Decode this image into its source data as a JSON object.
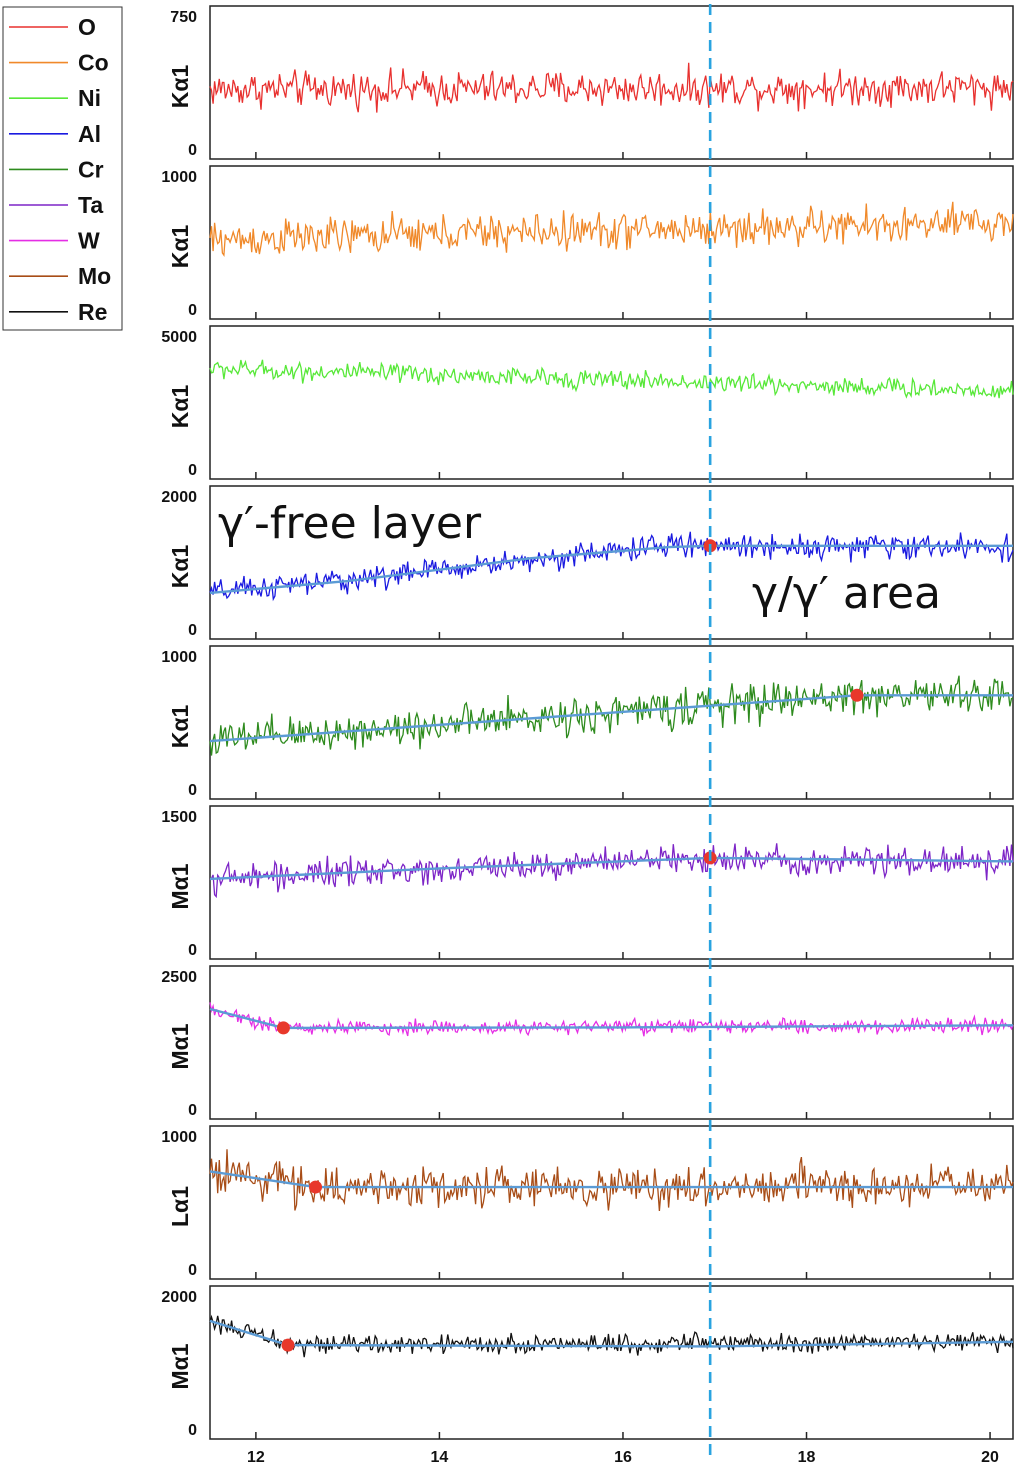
{
  "chart_data": {
    "type": "line",
    "x_tick_labels": [
      "12",
      "14",
      "16",
      "18",
      "20"
    ],
    "xlim": [
      11.5,
      20.25
    ],
    "marker_line_x": 16.95,
    "marker_line_color": "#29a3e0",
    "trend_color": "#5b9bd5",
    "point_color": "#e8382b",
    "annotations": [
      {
        "text": "γ′-free layer",
        "panel": 3
      },
      {
        "text": "γ/γ′ area",
        "panel": 3
      }
    ],
    "legend": [
      {
        "name": "O",
        "color": "#e8312f"
      },
      {
        "name": "Co",
        "color": "#f0892a"
      },
      {
        "name": "Ni",
        "color": "#57e838"
      },
      {
        "name": "Al",
        "color": "#1a1ae0"
      },
      {
        "name": "Cr",
        "color": "#2e8b1e"
      },
      {
        "name": "Ta",
        "color": "#7d25c7"
      },
      {
        "name": "W",
        "color": "#e52ee5"
      },
      {
        "name": "Mo",
        "color": "#a84d17"
      },
      {
        "name": "Re",
        "color": "#111111"
      }
    ],
    "panels": [
      {
        "element": "O",
        "ylabel": "Kα1",
        "ylim": [
          0,
          750
        ],
        "y_tick_labels": [
          "750",
          "0"
        ],
        "color": "#e8312f",
        "baseline": [
          [
            11.5,
            330
          ],
          [
            20.25,
            340
          ]
        ],
        "amplitude": 50,
        "trend": [],
        "points": []
      },
      {
        "element": "Co",
        "ylabel": "Kα1",
        "ylim": [
          0,
          1000
        ],
        "y_tick_labels": [
          "1000",
          "0"
        ],
        "color": "#f0892a",
        "baseline": [
          [
            11.5,
            510
          ],
          [
            14,
            560
          ],
          [
            20.25,
            640
          ]
        ],
        "amplitude": 70,
        "trend": [],
        "points": []
      },
      {
        "element": "Ni",
        "ylabel": "Kα1",
        "ylim": [
          0,
          5000
        ],
        "y_tick_labels": [
          "5000",
          "0"
        ],
        "color": "#57e838",
        "baseline": [
          [
            11.5,
            3750
          ],
          [
            20.25,
            2900
          ]
        ],
        "amplitude": 180,
        "trend": [],
        "points": []
      },
      {
        "element": "Al",
        "ylabel": "Kα1",
        "ylim": [
          0,
          2000
        ],
        "y_tick_labels": [
          "2000",
          "0"
        ],
        "color": "#1a1ae0",
        "baseline": [
          [
            11.5,
            520
          ],
          [
            13,
            720
          ],
          [
            16.5,
            1250
          ],
          [
            16.95,
            1240
          ],
          [
            20.25,
            1220
          ]
        ],
        "amplitude": 90,
        "trend": [
          [
            11.5,
            520
          ],
          [
            13,
            700
          ],
          [
            15,
            1050
          ],
          [
            16.5,
            1220
          ],
          [
            16.95,
            1240
          ],
          [
            20.25,
            1240
          ]
        ],
        "points": [
          [
            16.95,
            1240
          ]
        ]
      },
      {
        "element": "Cr",
        "ylabel": "Kα1",
        "ylim": [
          0,
          1000
        ],
        "y_tick_labels": [
          "1000",
          "0"
        ],
        "color": "#2e8b1e",
        "baseline": [
          [
            11.5,
            350
          ],
          [
            18.55,
            700
          ],
          [
            20.25,
            700
          ]
        ],
        "amplitude": 70,
        "trend": [
          [
            11.5,
            350
          ],
          [
            18.55,
            700
          ],
          [
            20.25,
            700
          ]
        ],
        "points": [
          [
            18.55,
            700
          ]
        ]
      },
      {
        "element": "Ta",
        "ylabel": "Mα1",
        "ylim": [
          0,
          1500
        ],
        "y_tick_labels": [
          "1500",
          "0"
        ],
        "color": "#7d25c7",
        "baseline": [
          [
            11.5,
            780
          ],
          [
            16.95,
            1020
          ],
          [
            17.5,
            1000
          ],
          [
            20.25,
            980
          ]
        ],
        "amplitude": 80,
        "trend": [
          [
            11.5,
            780
          ],
          [
            14,
            900
          ],
          [
            16.95,
            1020
          ],
          [
            20.25,
            980
          ]
        ],
        "points": [
          [
            16.95,
            1020
          ]
        ]
      },
      {
        "element": "W",
        "ylabel": "Mα1",
        "ylim": [
          0,
          2500
        ],
        "y_tick_labels": [
          "2500",
          "0"
        ],
        "color": "#e52ee5",
        "baseline": [
          [
            11.5,
            1870
          ],
          [
            12.3,
            1510
          ],
          [
            20.25,
            1550
          ]
        ],
        "amplitude": 70,
        "trend": [
          [
            11.5,
            1870
          ],
          [
            12.3,
            1510
          ],
          [
            16,
            1520
          ],
          [
            20.25,
            1560
          ]
        ],
        "points": [
          [
            12.3,
            1510
          ]
        ]
      },
      {
        "element": "Mo",
        "ylabel": "Lα1",
        "ylim": [
          0,
          1000
        ],
        "y_tick_labels": [
          "1000",
          "0"
        ],
        "color": "#a84d17",
        "baseline": [
          [
            11.5,
            730
          ],
          [
            12.65,
            610
          ],
          [
            20.25,
            620
          ]
        ],
        "amplitude": 75,
        "trend": [
          [
            11.5,
            730
          ],
          [
            12.65,
            610
          ],
          [
            20.25,
            610
          ]
        ],
        "points": [
          [
            12.65,
            610
          ]
        ]
      },
      {
        "element": "Re",
        "ylabel": "Mα1",
        "ylim": [
          0,
          2000
        ],
        "y_tick_labels": [
          "2000",
          "0"
        ],
        "color": "#111111",
        "baseline": [
          [
            11.5,
            1620
          ],
          [
            12.35,
            1250
          ],
          [
            20.25,
            1300
          ]
        ],
        "amplitude": 70,
        "trend": [
          [
            11.5,
            1620
          ],
          [
            12.35,
            1250
          ],
          [
            17,
            1230
          ],
          [
            20.25,
            1300
          ]
        ],
        "points": [
          [
            12.35,
            1250
          ]
        ]
      }
    ]
  }
}
